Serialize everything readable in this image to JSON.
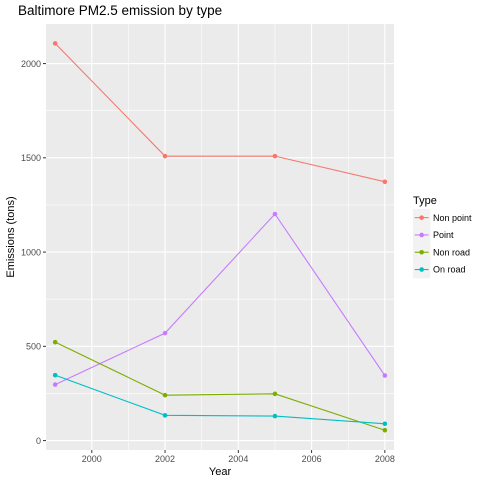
{
  "chart_data": {
    "type": "line",
    "title": "Baltimore PM2.5 emission by type",
    "xlabel": "Year",
    "ylabel": "Emissions (tons)",
    "xlim": [
      1998.75,
      2008.25
    ],
    "ylim": [
      -50,
      2210
    ],
    "x_ticks": [
      2000,
      2002,
      2004,
      2006,
      2008
    ],
    "y_ticks": [
      0,
      500,
      1000,
      1500,
      2000
    ],
    "grid": true,
    "legend_title": "Type",
    "legend_position": "right",
    "series": [
      {
        "name": "Non point",
        "color": "#f8766d",
        "x": [
          1999,
          2002,
          2005,
          2008
        ],
        "y": [
          2107,
          1509,
          1509,
          1373
        ]
      },
      {
        "name": "Point",
        "color": "#c77cff",
        "x": [
          1999,
          2002,
          2005,
          2008
        ],
        "y": [
          297,
          570,
          1202,
          345
        ]
      },
      {
        "name": "Non road",
        "color": "#7cae00",
        "x": [
          1999,
          2002,
          2005,
          2008
        ],
        "y": [
          522,
          241,
          248,
          55
        ]
      },
      {
        "name": "On road",
        "color": "#00bfc4",
        "x": [
          1999,
          2002,
          2005,
          2008
        ],
        "y": [
          347,
          134,
          130,
          89
        ]
      }
    ]
  }
}
